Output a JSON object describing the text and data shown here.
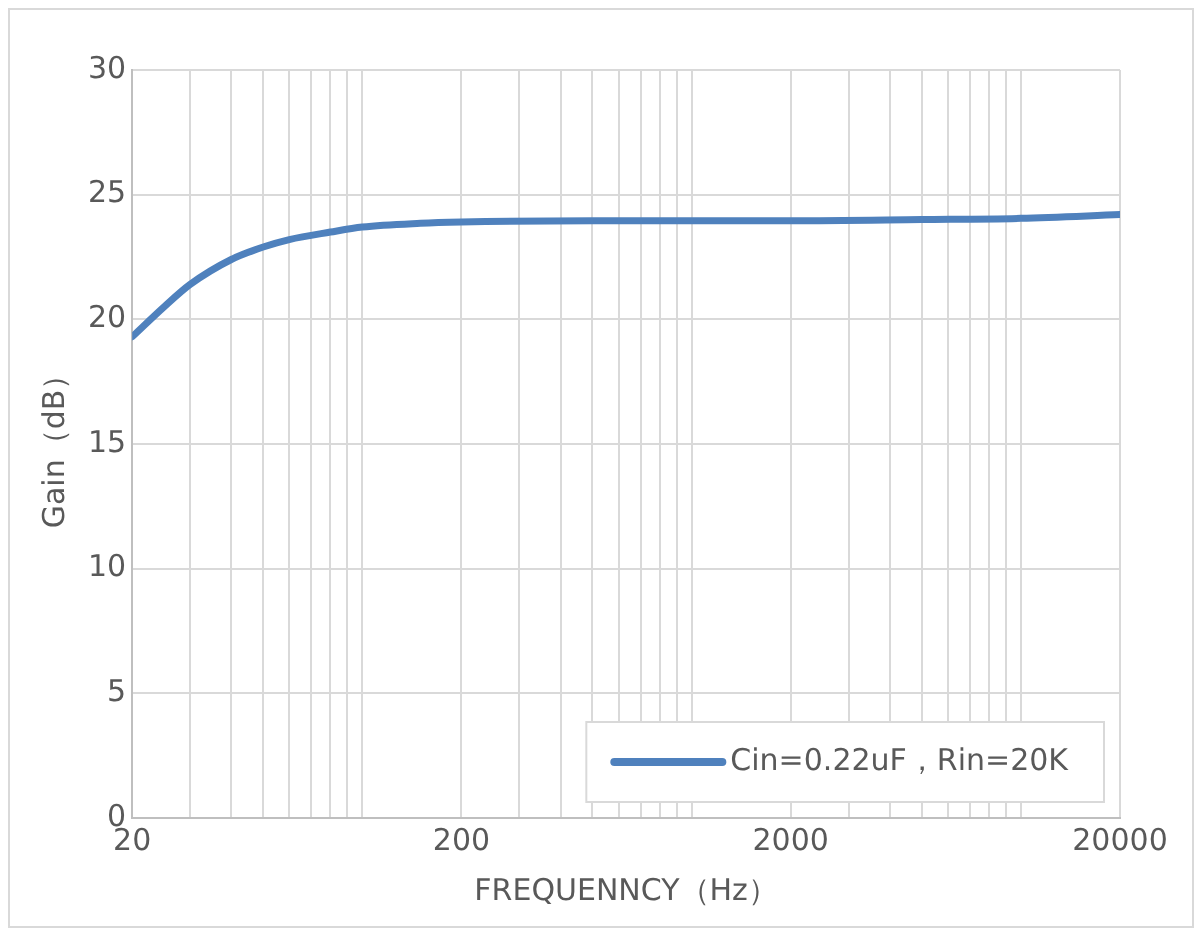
{
  "chart_data": {
    "type": "line",
    "xlabel": "FREQUENNCY（Hz）",
    "ylabel": "Gain（dB）",
    "x": [
      20,
      25,
      30,
      40,
      50,
      60,
      80,
      100,
      150,
      200,
      500,
      1000,
      2000,
      5000,
      10000,
      20000
    ],
    "series": [
      {
        "name": "Cin=0.22uF，Rin=20K",
        "color": "#4f81bd",
        "values": [
          19.3,
          20.5,
          21.4,
          22.4,
          22.9,
          23.2,
          23.5,
          23.7,
          23.85,
          23.9,
          23.95,
          23.95,
          23.95,
          24.0,
          24.05,
          24.2
        ]
      }
    ],
    "log": "x",
    "xlim": [
      20,
      20000
    ],
    "ylim": [
      0,
      30
    ],
    "xticks": [
      20,
      {
        "value": 30,
        "label": null
      },
      {
        "value": 40,
        "label": null
      },
      {
        "value": 50,
        "label": null
      },
      {
        "value": 60,
        "label": null
      },
      {
        "value": 70,
        "label": null
      },
      {
        "value": 80,
        "label": null
      },
      {
        "value": 90,
        "label": null
      },
      {
        "value": 100,
        "label": null
      },
      200,
      {
        "value": 300,
        "label": null
      },
      {
        "value": 400,
        "label": null
      },
      {
        "value": 500,
        "label": null
      },
      {
        "value": 600,
        "label": null
      },
      {
        "value": 700,
        "label": null
      },
      {
        "value": 800,
        "label": null
      },
      {
        "value": 900,
        "label": null
      },
      {
        "value": 1000,
        "label": null
      },
      2000,
      {
        "value": 3000,
        "label": null
      },
      {
        "value": 4000,
        "label": null
      },
      {
        "value": 5000,
        "label": null
      },
      {
        "value": 6000,
        "label": null
      },
      {
        "value": 7000,
        "label": null
      },
      {
        "value": 8000,
        "label": null
      },
      {
        "value": 9000,
        "label": null
      },
      {
        "value": 10000,
        "label": null
      },
      20000
    ],
    "yticks": [
      0,
      5,
      10,
      15,
      20,
      25,
      30
    ],
    "grid": true,
    "legend": "bottom right",
    "marker": "none",
    "line_style": "solid"
  }
}
